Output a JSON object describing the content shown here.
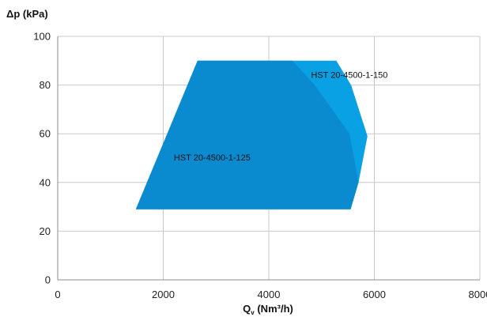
{
  "chart_data": {
    "type": "area",
    "ylabel": "Δp (kPa)",
    "xlabel": "Q",
    "xlabel_subscript": "v",
    "xlabel_units": " (Nm³/h)",
    "xlim": [
      0,
      8000
    ],
    "ylim": [
      0,
      100
    ],
    "x_ticks": [
      0,
      2000,
      4000,
      6000,
      8000
    ],
    "y_ticks": [
      0,
      20,
      40,
      60,
      80,
      100
    ],
    "grid": true,
    "series": [
      {
        "name": "HST 20-4500-1-150",
        "color": "#0aa0e4",
        "points": [
          [
            1480,
            29
          ],
          [
            2650,
            90
          ],
          [
            5280,
            90
          ],
          [
            5560,
            80
          ],
          [
            5870,
            59
          ],
          [
            5700,
            40
          ],
          [
            5550,
            29
          ]
        ]
      },
      {
        "name": "HST 20-4500-1-125",
        "color": "#0a8bd0",
        "points": [
          [
            1480,
            29
          ],
          [
            2650,
            90
          ],
          [
            4450,
            90
          ],
          [
            4870,
            80
          ],
          [
            5530,
            60
          ],
          [
            5700,
            40
          ],
          [
            5550,
            29
          ]
        ]
      }
    ],
    "labels": [
      {
        "series": 0,
        "text": "HST 20-4500-1-150",
        "x": 4800,
        "y": 83
      },
      {
        "series": 1,
        "text": "HST 20-4500-1-125",
        "x": 2200,
        "y": 49
      }
    ]
  }
}
